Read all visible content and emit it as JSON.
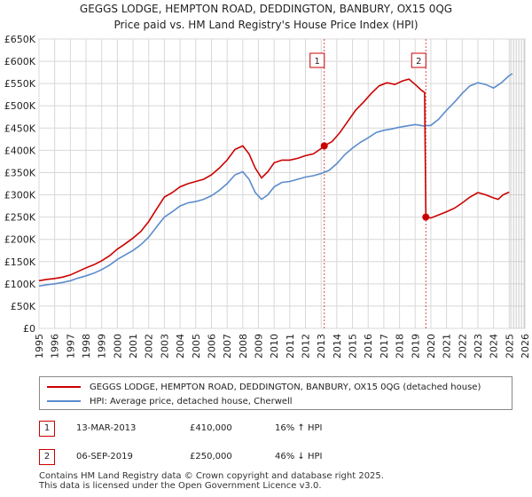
{
  "chart_data": {
    "type": "line",
    "title_line1": "GEGGS LODGE, HEMPTON ROAD, DEDDINGTON, BANBURY, OX15 0QG",
    "title_line2": "Price paid vs. HM Land Registry's House Price Index (HPI)",
    "x_ticks": [
      "1995",
      "1996",
      "1997",
      "1998",
      "1999",
      "2000",
      "2001",
      "2002",
      "2003",
      "2004",
      "2005",
      "2006",
      "2007",
      "2008",
      "2009",
      "2010",
      "2011",
      "2012",
      "2013",
      "2014",
      "2015",
      "2016",
      "2017",
      "2018",
      "2019",
      "2020",
      "2021",
      "2022",
      "2023",
      "2024",
      "2025",
      "2026"
    ],
    "y_ticks": [
      "£0",
      "£50K",
      "£100K",
      "£150K",
      "£200K",
      "£250K",
      "£300K",
      "£350K",
      "£400K",
      "£450K",
      "£500K",
      "£550K",
      "£600K",
      "£650K"
    ],
    "xlim": [
      1995,
      2026
    ],
    "ylim": [
      0,
      650000
    ],
    "forecast_start": 2025.1,
    "series": [
      {
        "name": "GEGGS LODGE, HEMPTON ROAD, DEDDINGTON, BANBURY, OX15 0QG (detached house)",
        "color": "#cc0000",
        "points": [
          [
            1995.0,
            107000
          ],
          [
            1995.5,
            110000
          ],
          [
            1996.0,
            112000
          ],
          [
            1996.5,
            115000
          ],
          [
            1997.0,
            120000
          ],
          [
            1997.5,
            128000
          ],
          [
            1998.0,
            136000
          ],
          [
            1998.5,
            143000
          ],
          [
            1999.0,
            152000
          ],
          [
            1999.5,
            163000
          ],
          [
            2000.0,
            178000
          ],
          [
            2000.5,
            190000
          ],
          [
            2001.0,
            203000
          ],
          [
            2001.5,
            218000
          ],
          [
            2002.0,
            240000
          ],
          [
            2002.5,
            268000
          ],
          [
            2003.0,
            295000
          ],
          [
            2003.5,
            305000
          ],
          [
            2004.0,
            318000
          ],
          [
            2004.5,
            325000
          ],
          [
            2005.0,
            330000
          ],
          [
            2005.5,
            335000
          ],
          [
            2006.0,
            345000
          ],
          [
            2006.5,
            360000
          ],
          [
            2007.0,
            378000
          ],
          [
            2007.5,
            402000
          ],
          [
            2008.0,
            410000
          ],
          [
            2008.4,
            392000
          ],
          [
            2008.8,
            360000
          ],
          [
            2009.2,
            338000
          ],
          [
            2009.6,
            352000
          ],
          [
            2010.0,
            372000
          ],
          [
            2010.5,
            378000
          ],
          [
            2011.0,
            378000
          ],
          [
            2011.5,
            382000
          ],
          [
            2012.0,
            388000
          ],
          [
            2012.5,
            392000
          ],
          [
            2013.0,
            404000
          ],
          [
            2013.2,
            410000
          ],
          [
            2013.7,
            420000
          ],
          [
            2014.2,
            440000
          ],
          [
            2014.7,
            465000
          ],
          [
            2015.2,
            490000
          ],
          [
            2015.7,
            508000
          ],
          [
            2016.2,
            528000
          ],
          [
            2016.7,
            545000
          ],
          [
            2017.2,
            552000
          ],
          [
            2017.7,
            548000
          ],
          [
            2018.2,
            556000
          ],
          [
            2018.6,
            560000
          ],
          [
            2019.0,
            548000
          ],
          [
            2019.4,
            535000
          ],
          [
            2019.6,
            530000
          ],
          [
            2019.68,
            250000
          ],
          [
            2020.0,
            248000
          ],
          [
            2020.5,
            255000
          ],
          [
            2021.0,
            262000
          ],
          [
            2021.5,
            270000
          ],
          [
            2022.0,
            282000
          ],
          [
            2022.5,
            295000
          ],
          [
            2023.0,
            305000
          ],
          [
            2023.5,
            300000
          ],
          [
            2024.0,
            293000
          ],
          [
            2024.3,
            290000
          ],
          [
            2024.6,
            300000
          ],
          [
            2025.0,
            306000
          ]
        ]
      },
      {
        "name": "HPI: Average price, detached house, Cherwell",
        "color": "#5b8ccc",
        "points": [
          [
            1995.0,
            95000
          ],
          [
            1995.5,
            98000
          ],
          [
            1996.0,
            100000
          ],
          [
            1996.5,
            103000
          ],
          [
            1997.0,
            107000
          ],
          [
            1997.5,
            113000
          ],
          [
            1998.0,
            118000
          ],
          [
            1998.5,
            124000
          ],
          [
            1999.0,
            132000
          ],
          [
            1999.5,
            142000
          ],
          [
            2000.0,
            155000
          ],
          [
            2000.5,
            165000
          ],
          [
            2001.0,
            175000
          ],
          [
            2001.5,
            188000
          ],
          [
            2002.0,
            205000
          ],
          [
            2002.5,
            228000
          ],
          [
            2003.0,
            250000
          ],
          [
            2003.5,
            262000
          ],
          [
            2004.0,
            275000
          ],
          [
            2004.5,
            282000
          ],
          [
            2005.0,
            285000
          ],
          [
            2005.5,
            290000
          ],
          [
            2006.0,
            298000
          ],
          [
            2006.5,
            310000
          ],
          [
            2007.0,
            325000
          ],
          [
            2007.5,
            345000
          ],
          [
            2008.0,
            352000
          ],
          [
            2008.4,
            335000
          ],
          [
            2008.8,
            305000
          ],
          [
            2009.2,
            290000
          ],
          [
            2009.6,
            300000
          ],
          [
            2010.0,
            318000
          ],
          [
            2010.5,
            328000
          ],
          [
            2011.0,
            330000
          ],
          [
            2011.5,
            335000
          ],
          [
            2012.0,
            340000
          ],
          [
            2012.5,
            343000
          ],
          [
            2013.0,
            348000
          ],
          [
            2013.5,
            355000
          ],
          [
            2014.0,
            370000
          ],
          [
            2014.5,
            390000
          ],
          [
            2015.0,
            405000
          ],
          [
            2015.5,
            418000
          ],
          [
            2016.0,
            428000
          ],
          [
            2016.5,
            440000
          ],
          [
            2017.0,
            445000
          ],
          [
            2017.5,
            448000
          ],
          [
            2018.0,
            452000
          ],
          [
            2018.5,
            455000
          ],
          [
            2019.0,
            458000
          ],
          [
            2019.5,
            455000
          ],
          [
            2020.0,
            456000
          ],
          [
            2020.5,
            470000
          ],
          [
            2021.0,
            490000
          ],
          [
            2021.5,
            508000
          ],
          [
            2022.0,
            528000
          ],
          [
            2022.5,
            545000
          ],
          [
            2023.0,
            552000
          ],
          [
            2023.5,
            548000
          ],
          [
            2024.0,
            540000
          ],
          [
            2024.5,
            552000
          ],
          [
            2025.0,
            568000
          ],
          [
            2025.2,
            572000
          ]
        ]
      }
    ],
    "annotations": [
      {
        "label": "1",
        "x": 2013.2,
        "y": 410000
      },
      {
        "label": "2",
        "x": 2019.68,
        "y": 250000
      }
    ]
  },
  "legend": {
    "property_label": "GEGGS LODGE, HEMPTON ROAD, DEDDINGTON, BANBURY, OX15 0QG (detached house)",
    "hpi_label": "HPI: Average price, detached house, Cherwell"
  },
  "transactions": [
    {
      "num": "1",
      "date": "13-MAR-2013",
      "price": "£410,000",
      "hpi": "16% ↑ HPI"
    },
    {
      "num": "2",
      "date": "06-SEP-2019",
      "price": "£250,000",
      "hpi": "46% ↓ HPI"
    }
  ],
  "footer": {
    "line1": "Contains HM Land Registry data © Crown copyright and database right 2025.",
    "line2": "This data is licensed under the Open Government Licence v3.0."
  },
  "colors": {
    "property": "#cc0000",
    "hpi": "#5b8ccc",
    "grid": "#d8d8d8",
    "accent": "#cc0000"
  }
}
